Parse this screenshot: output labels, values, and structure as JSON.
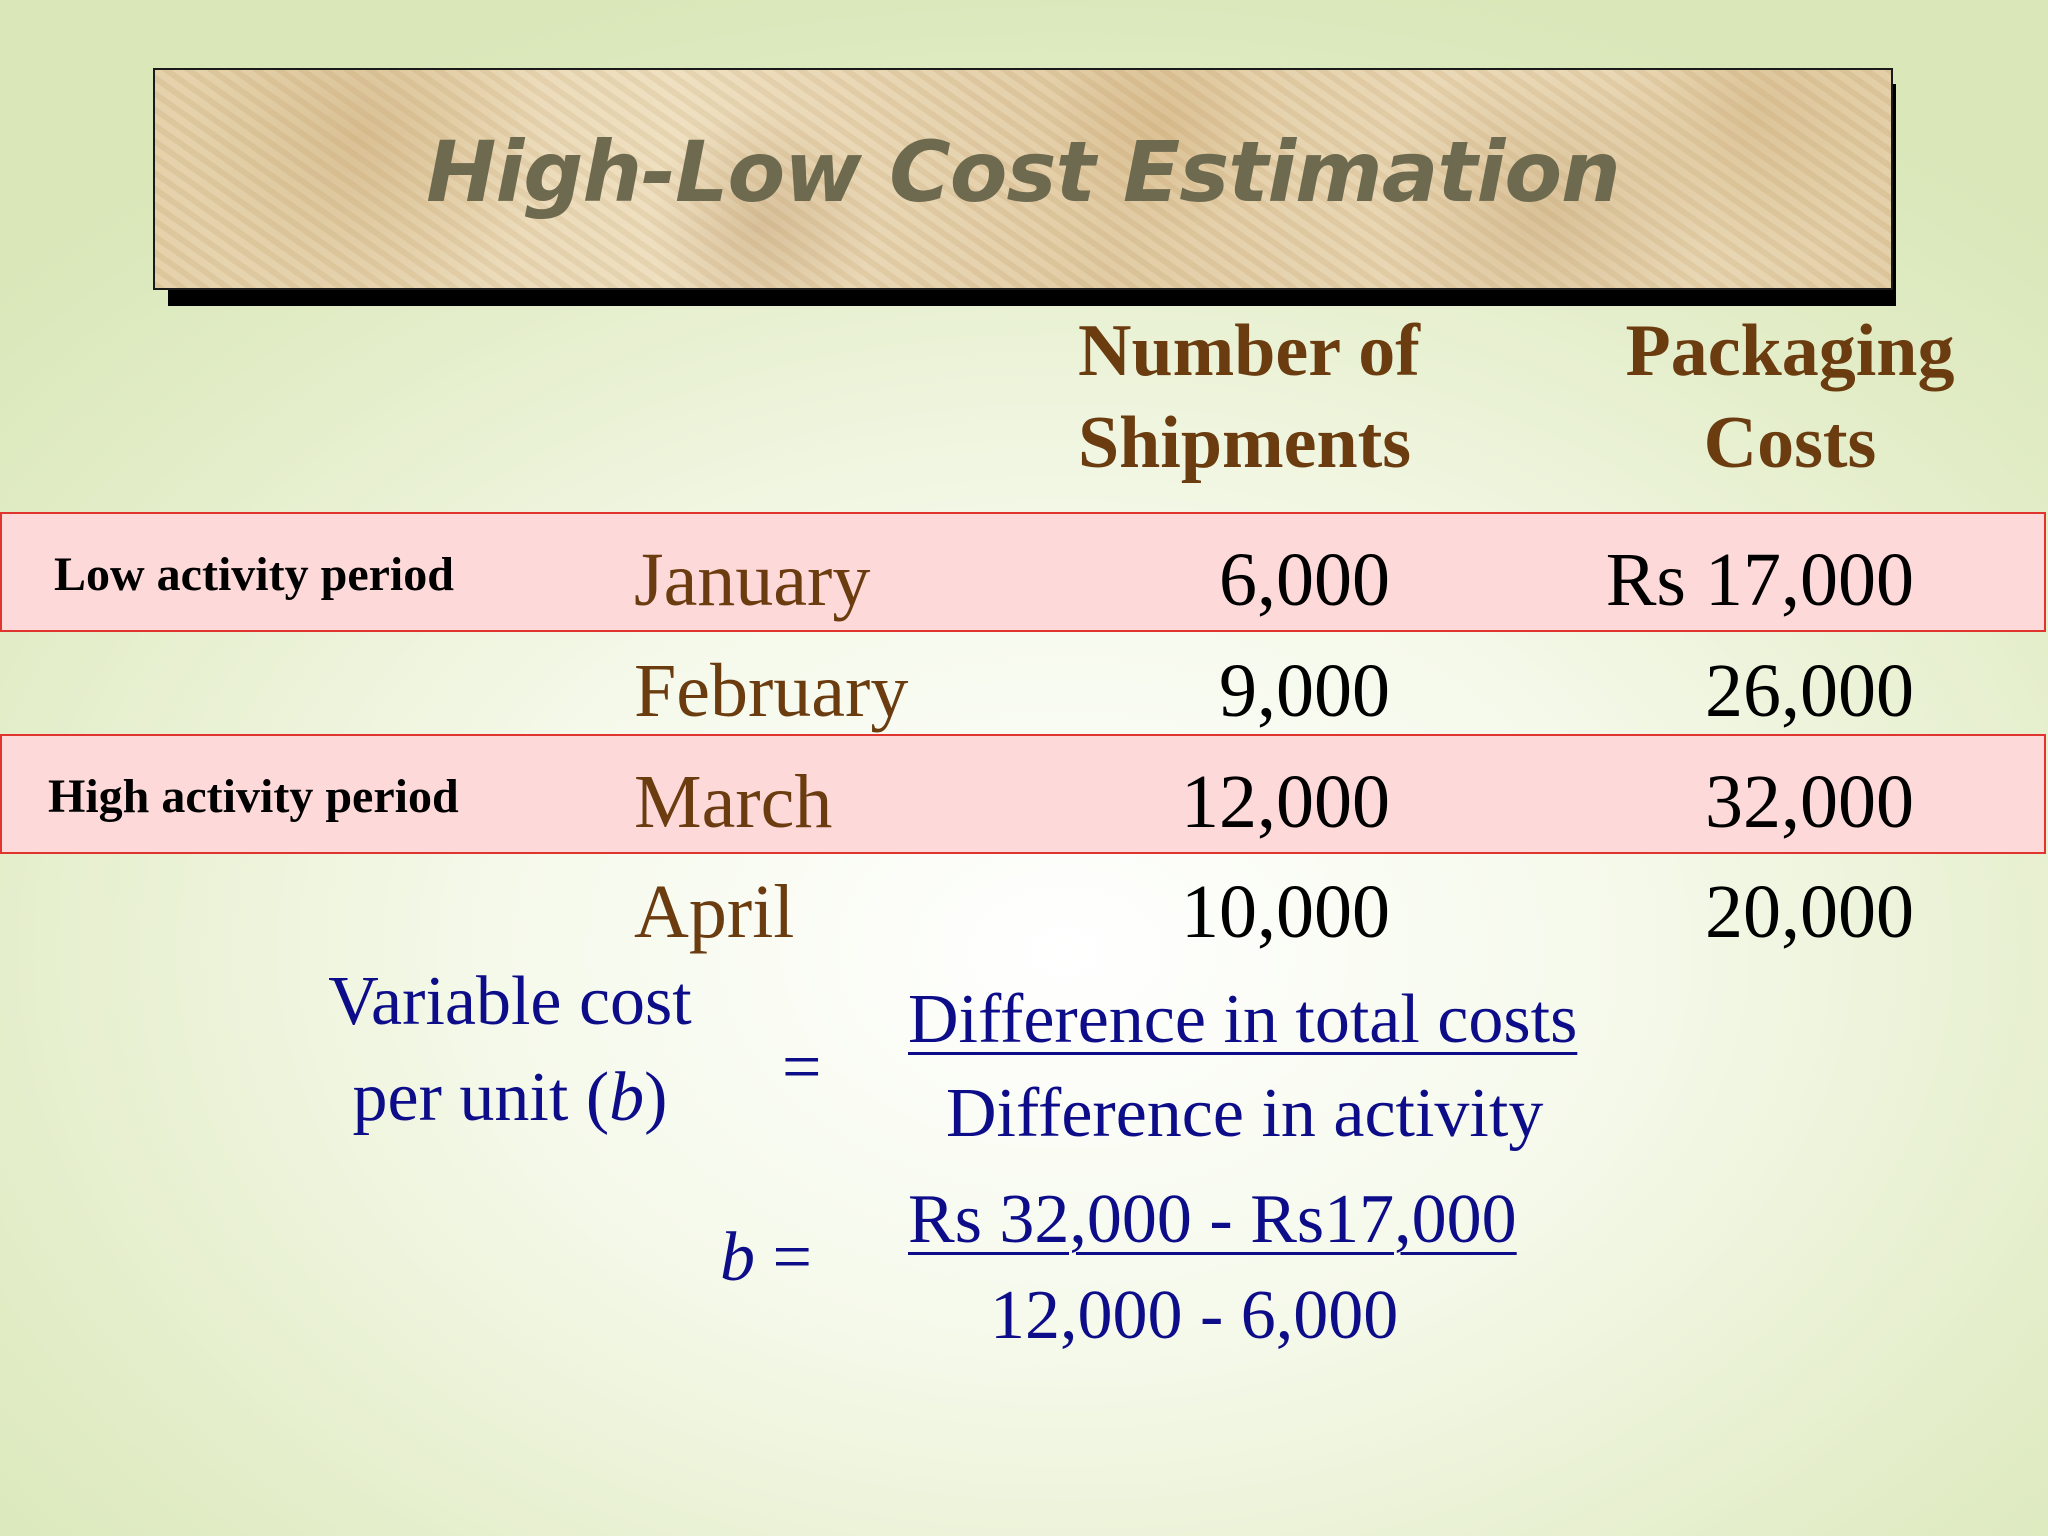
{
  "slide": {
    "title": "High-Low Cost Estimation"
  },
  "table": {
    "headers": {
      "shipments_line1": "Number of",
      "shipments_line2": "Shipments",
      "costs_line1": "Packaging",
      "costs_line2": "Costs"
    },
    "period_labels": {
      "low": "Low activity period",
      "high": "High activity period"
    },
    "rows": [
      {
        "month": "January",
        "shipments": "6,000",
        "cost": "Rs 17,000"
      },
      {
        "month": "February",
        "shipments": "9,000",
        "cost": "26,000"
      },
      {
        "month": "March",
        "shipments": "12,000",
        "cost": "32,000"
      },
      {
        "month": "April",
        "shipments": "10,000",
        "cost": "20,000"
      }
    ]
  },
  "formula": {
    "label_line1": "Variable cost",
    "label_line2_prefix": "per unit (",
    "label_var": "b",
    "label_line2_suffix": ")",
    "equals": "=",
    "numerator": "Difference in total costs",
    "denominator": "Difference in activity",
    "b_var": "b",
    "b_equals": " =",
    "calc_numerator": "Rs 32,000 - Rs17,000",
    "calc_denominator": "12,000 - 6,000"
  },
  "colors": {
    "title_text": "#6e6a4f",
    "header_text": "#6b3c10",
    "band_fill": "#fdd9d9",
    "band_border": "#e0342f",
    "formula_text": "#0d0d8a"
  }
}
